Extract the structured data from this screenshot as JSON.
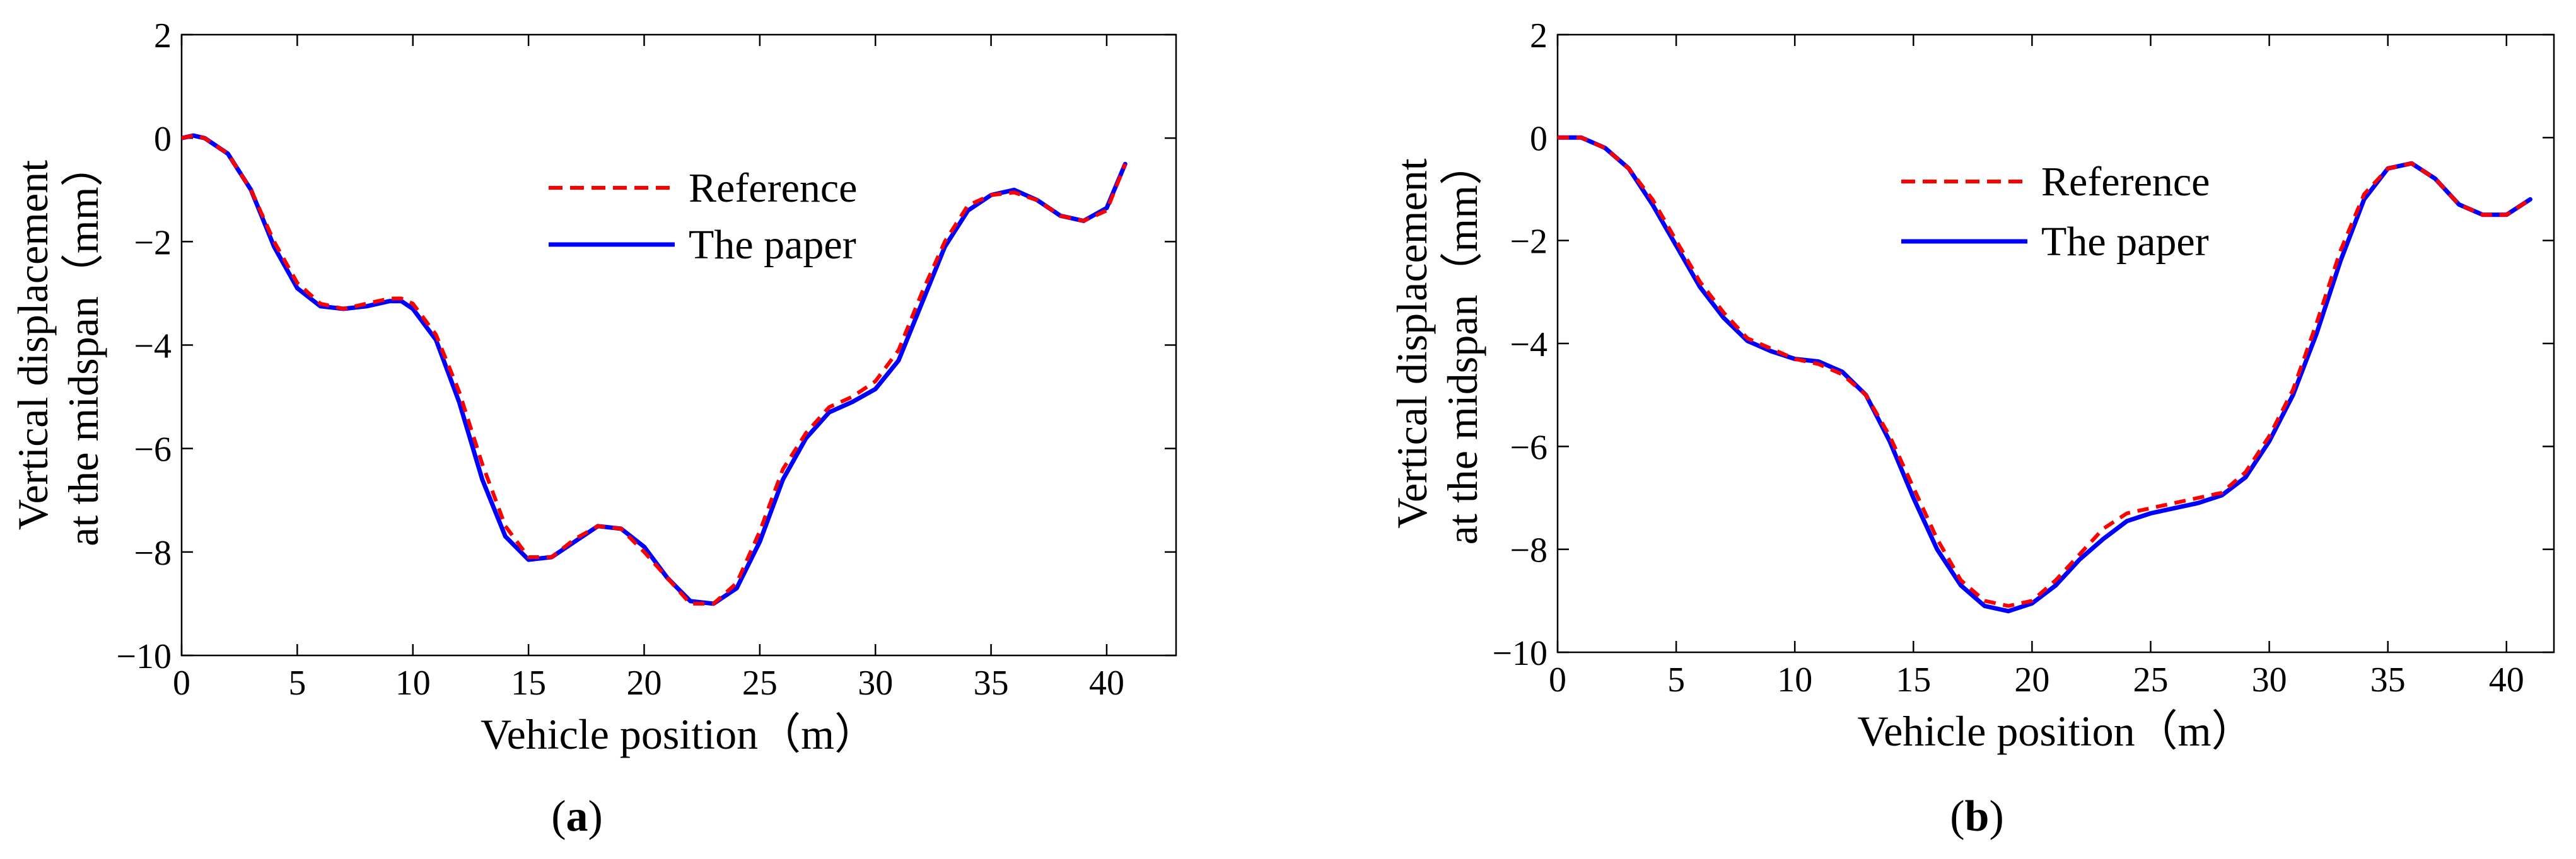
{
  "figure": {
    "panels": [
      {
        "label_open": "(",
        "label": "a",
        "label_close": ")"
      },
      {
        "label_open": "(",
        "label": "b",
        "label_close": ")"
      }
    ]
  },
  "chart_data": [
    {
      "type": "line",
      "xlabel": "Vehicle position（m）",
      "ylabel_line1": "Vertical displacement",
      "ylabel_line2": "at the midspan（mm）",
      "xlim": [
        0,
        43
      ],
      "ylim": [
        -10,
        2
      ],
      "xticks": [
        0,
        5,
        10,
        15,
        20,
        25,
        30,
        35,
        40
      ],
      "yticks": [
        2,
        0,
        -2,
        -4,
        -6,
        -8,
        -10
      ],
      "ytick_labels": [
        "2",
        "0",
        "−2",
        "−4",
        "−6",
        "−8",
        "−10"
      ],
      "grid": false,
      "legend_position": "upper-right",
      "series": [
        {
          "name": "Reference",
          "color": "#ff0000",
          "style": "dashed",
          "x": [
            0,
            0.5,
            1,
            2,
            3,
            4,
            5,
            6,
            7,
            8,
            9,
            9.5,
            10,
            11,
            12,
            13,
            14,
            15,
            16,
            17,
            18,
            19,
            20,
            21,
            22,
            23,
            24,
            25,
            26,
            27,
            28,
            29,
            30,
            31,
            32,
            33,
            34,
            35,
            36,
            37,
            38,
            39,
            40,
            40.8
          ],
          "y": [
            0,
            0.05,
            0,
            -0.3,
            -1.0,
            -2.0,
            -2.8,
            -3.2,
            -3.3,
            -3.2,
            -3.1,
            -3.1,
            -3.2,
            -3.8,
            -4.9,
            -6.3,
            -7.5,
            -8.1,
            -8.1,
            -7.75,
            -7.5,
            -7.55,
            -8.0,
            -8.5,
            -9.0,
            -9.0,
            -8.6,
            -7.6,
            -6.4,
            -5.7,
            -5.2,
            -5.0,
            -4.7,
            -4.1,
            -3.0,
            -2.0,
            -1.3,
            -1.1,
            -1.05,
            -1.2,
            -1.5,
            -1.6,
            -1.4,
            -0.5
          ]
        },
        {
          "name": "The paper",
          "color": "#0000ff",
          "style": "solid",
          "x": [
            0,
            0.5,
            1,
            2,
            3,
            4,
            5,
            6,
            7,
            8,
            9,
            9.5,
            10,
            11,
            12,
            13,
            14,
            15,
            16,
            17,
            18,
            19,
            20,
            21,
            22,
            23,
            24,
            25,
            26,
            27,
            28,
            29,
            30,
            31,
            32,
            33,
            34,
            35,
            36,
            37,
            38,
            39,
            40,
            40.8
          ],
          "y": [
            0,
            0.05,
            0,
            -0.3,
            -1.0,
            -2.1,
            -2.9,
            -3.25,
            -3.3,
            -3.25,
            -3.15,
            -3.15,
            -3.3,
            -3.9,
            -5.1,
            -6.6,
            -7.7,
            -8.15,
            -8.1,
            -7.8,
            -7.5,
            -7.55,
            -7.9,
            -8.5,
            -8.95,
            -9.0,
            -8.7,
            -7.8,
            -6.6,
            -5.8,
            -5.3,
            -5.1,
            -4.85,
            -4.3,
            -3.2,
            -2.1,
            -1.4,
            -1.1,
            -1.0,
            -1.2,
            -1.5,
            -1.6,
            -1.35,
            -0.5
          ]
        }
      ]
    },
    {
      "type": "line",
      "xlabel": "Vehicle position（m）",
      "ylabel_line1": "Vertical displacement",
      "ylabel_line2": "at the midspan（mm）",
      "xlim": [
        0,
        42
      ],
      "ylim": [
        -10,
        2
      ],
      "xticks": [
        0,
        5,
        10,
        15,
        20,
        25,
        30,
        35,
        40
      ],
      "yticks": [
        2,
        0,
        -2,
        -4,
        -6,
        -8,
        -10
      ],
      "ytick_labels": [
        "2",
        "0",
        "−2",
        "−4",
        "−6",
        "−8",
        "−10"
      ],
      "grid": false,
      "legend_position": "upper-right",
      "series": [
        {
          "name": "Reference",
          "color": "#ff0000",
          "style": "dashed",
          "x": [
            0,
            1,
            2,
            3,
            4,
            5,
            6,
            7,
            8,
            9,
            10,
            11,
            12,
            13,
            14,
            15,
            16,
            17,
            18,
            19,
            20,
            21,
            22,
            23,
            24,
            25,
            26,
            27,
            28,
            29,
            30,
            31,
            32,
            33,
            34,
            35,
            36,
            37,
            38,
            39,
            40,
            41
          ],
          "y": [
            0,
            0,
            -0.2,
            -0.6,
            -1.2,
            -2.0,
            -2.8,
            -3.4,
            -3.9,
            -4.1,
            -4.3,
            -4.4,
            -4.6,
            -5.0,
            -5.8,
            -6.8,
            -7.8,
            -8.6,
            -9.0,
            -9.1,
            -9.0,
            -8.6,
            -8.1,
            -7.6,
            -7.3,
            -7.2,
            -7.1,
            -7.0,
            -6.9,
            -6.5,
            -5.8,
            -4.9,
            -3.6,
            -2.2,
            -1.1,
            -0.6,
            -0.5,
            -0.8,
            -1.3,
            -1.5,
            -1.5,
            -1.2
          ]
        },
        {
          "name": "The paper",
          "color": "#0000ff",
          "style": "solid",
          "x": [
            0,
            1,
            2,
            3,
            4,
            5,
            6,
            7,
            8,
            9,
            10,
            11,
            12,
            13,
            14,
            15,
            16,
            17,
            18,
            19,
            20,
            21,
            22,
            23,
            24,
            25,
            26,
            27,
            28,
            29,
            30,
            31,
            32,
            33,
            34,
            35,
            36,
            37,
            38,
            39,
            40,
            41
          ],
          "y": [
            0,
            0,
            -0.2,
            -0.6,
            -1.3,
            -2.1,
            -2.9,
            -3.5,
            -3.95,
            -4.15,
            -4.3,
            -4.35,
            -4.55,
            -5.0,
            -5.9,
            -7.0,
            -8.0,
            -8.7,
            -9.1,
            -9.2,
            -9.05,
            -8.7,
            -8.2,
            -7.8,
            -7.45,
            -7.3,
            -7.2,
            -7.1,
            -6.95,
            -6.6,
            -5.9,
            -5.0,
            -3.8,
            -2.4,
            -1.2,
            -0.6,
            -0.5,
            -0.8,
            -1.3,
            -1.5,
            -1.5,
            -1.2
          ]
        }
      ]
    }
  ]
}
